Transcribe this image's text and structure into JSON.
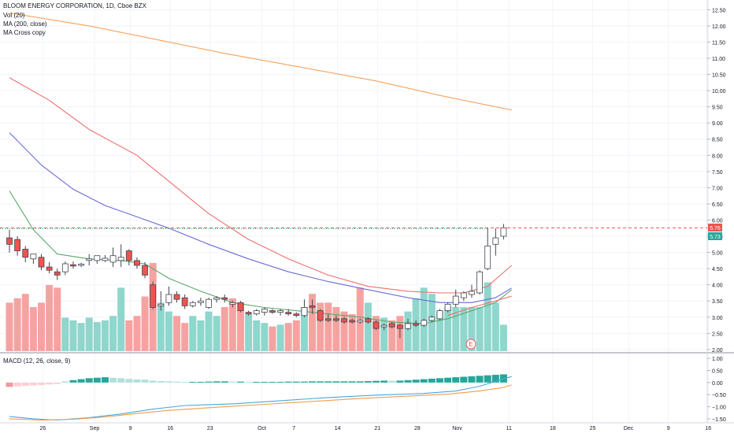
{
  "legend": {
    "title": "BLOOM ENERGY CORPORATION, 1D, Cboe BZX",
    "vol": "Vol (20)",
    "ma": "MA (200, close)",
    "cross": "MA Cross copy",
    "macd": "MACD (12, 26, close, 9)"
  },
  "price_axis": {
    "ticks": [
      "12.50",
      "12.00",
      "11.50",
      "11.00",
      "10.50",
      "10.00",
      "9.50",
      "9.00",
      "8.50",
      "8.00",
      "7.50",
      "7.00",
      "6.50",
      "6.00",
      "5.50",
      "5.00",
      "4.50",
      "4.00",
      "3.50",
      "3.00",
      "2.50",
      "2.00"
    ],
    "last_close_label": "5.76",
    "current_label": "5.73"
  },
  "macd_axis": {
    "ticks": [
      "1.00",
      "0.50",
      "0.00",
      "−0.50",
      "−1.00",
      "−1.50"
    ]
  },
  "time_axis": {
    "ticks": [
      "26",
      "Sep",
      "9",
      "16",
      "23",
      "Oct",
      "7",
      "14",
      "21",
      "28",
      "Nov",
      "11",
      "18",
      "25",
      "Dec",
      "9",
      "16"
    ]
  },
  "earnings_marker": "E",
  "colors": {
    "up": "#26a69a",
    "down": "#ef5350",
    "ma200": "#f7a35c",
    "ma_red": "#f06e6e",
    "ma_blue": "#6b6bd6",
    "ma_green": "#5aa86a",
    "macd_line": "#4aa8d8",
    "signal_line": "#f39c4a"
  },
  "chart_data": {
    "type": "candlestick",
    "price_ylim": [
      1.9,
      12.8
    ],
    "candles": [
      {
        "x": 0,
        "o": 5.45,
        "h": 5.7,
        "c": 5.25,
        "l": 5.0
      },
      {
        "x": 1,
        "o": 5.4,
        "h": 5.5,
        "c": 5.05,
        "l": 4.9
      },
      {
        "x": 2,
        "o": 5.1,
        "h": 5.2,
        "c": 4.85,
        "l": 4.7
      },
      {
        "x": 3,
        "o": 4.8,
        "h": 4.95,
        "c": 4.95,
        "l": 4.65
      },
      {
        "x": 4,
        "o": 4.85,
        "h": 4.95,
        "c": 4.55,
        "l": 4.45
      },
      {
        "x": 5,
        "o": 4.55,
        "h": 4.7,
        "c": 4.45,
        "l": 4.35
      },
      {
        "x": 6,
        "o": 4.4,
        "h": 4.5,
        "c": 4.3,
        "l": 4.15
      },
      {
        "x": 7,
        "o": 4.4,
        "h": 4.72,
        "c": 4.65,
        "l": 4.3
      },
      {
        "x": 8,
        "o": 4.62,
        "h": 4.72,
        "c": 4.58,
        "l": 4.5
      },
      {
        "x": 9,
        "o": 4.6,
        "h": 4.68,
        "c": 4.64,
        "l": 4.55
      },
      {
        "x": 10,
        "o": 4.75,
        "h": 4.95,
        "c": 4.8,
        "l": 4.6
      },
      {
        "x": 11,
        "o": 4.75,
        "h": 4.9,
        "c": 4.9,
        "l": 4.65
      },
      {
        "x": 12,
        "o": 4.75,
        "h": 4.92,
        "c": 4.82,
        "l": 4.7
      },
      {
        "x": 13,
        "o": 4.7,
        "h": 5.15,
        "c": 4.9,
        "l": 4.55
      },
      {
        "x": 14,
        "o": 4.75,
        "h": 5.25,
        "c": 4.85,
        "l": 4.55
      },
      {
        "x": 15,
        "o": 5.05,
        "h": 5.1,
        "c": 4.75,
        "l": 4.6
      },
      {
        "x": 16,
        "o": 4.75,
        "h": 4.85,
        "c": 4.6,
        "l": 4.5
      },
      {
        "x": 17,
        "o": 4.6,
        "h": 4.7,
        "c": 4.3,
        "l": 4.2
      },
      {
        "x": 18,
        "o": 4.0,
        "h": 4.1,
        "c": 3.3,
        "l": 3.25
      },
      {
        "x": 19,
        "o": 3.35,
        "h": 3.8,
        "c": 3.4,
        "l": 3.2
      },
      {
        "x": 20,
        "o": 3.45,
        "h": 3.95,
        "c": 3.7,
        "l": 3.35
      },
      {
        "x": 21,
        "o": 3.7,
        "h": 3.8,
        "c": 3.55,
        "l": 3.45
      },
      {
        "x": 22,
        "o": 3.6,
        "h": 3.7,
        "c": 3.35,
        "l": 3.25
      },
      {
        "x": 23,
        "o": 3.35,
        "h": 3.5,
        "c": 3.45,
        "l": 3.3
      },
      {
        "x": 24,
        "o": 3.45,
        "h": 3.6,
        "c": 3.5,
        "l": 3.35
      },
      {
        "x": 25,
        "o": 3.3,
        "h": 3.6,
        "c": 3.55,
        "l": 3.25
      },
      {
        "x": 26,
        "o": 3.55,
        "h": 3.65,
        "c": 3.6,
        "l": 3.45
      },
      {
        "x": 27,
        "o": 3.6,
        "h": 3.7,
        "c": 3.55,
        "l": 3.45
      },
      {
        "x": 28,
        "o": 3.4,
        "h": 3.5,
        "c": 3.45,
        "l": 3.3
      },
      {
        "x": 29,
        "o": 3.45,
        "h": 3.5,
        "c": 3.2,
        "l": 3.15
      },
      {
        "x": 30,
        "o": 3.15,
        "h": 3.2,
        "c": 3.1,
        "l": 3.05
      },
      {
        "x": 31,
        "o": 3.1,
        "h": 3.25,
        "c": 3.2,
        "l": 3.05
      },
      {
        "x": 32,
        "o": 3.15,
        "h": 3.3,
        "c": 3.25,
        "l": 3.05
      },
      {
        "x": 33,
        "o": 3.2,
        "h": 3.25,
        "c": 3.15,
        "l": 3.1
      },
      {
        "x": 34,
        "o": 3.15,
        "h": 3.25,
        "c": 3.2,
        "l": 3.05
      },
      {
        "x": 35,
        "o": 3.15,
        "h": 3.25,
        "c": 3.1,
        "l": 3.05
      },
      {
        "x": 36,
        "o": 3.1,
        "h": 3.15,
        "c": 3.05,
        "l": 3.0
      },
      {
        "x": 37,
        "o": 3.05,
        "h": 3.55,
        "c": 3.3,
        "l": 3.0
      },
      {
        "x": 38,
        "o": 3.35,
        "h": 3.55,
        "c": 3.3,
        "l": 3.1
      },
      {
        "x": 39,
        "o": 3.2,
        "h": 3.25,
        "c": 2.9,
        "l": 2.85
      },
      {
        "x": 40,
        "o": 2.95,
        "h": 3.1,
        "c": 2.9,
        "l": 2.85
      },
      {
        "x": 41,
        "o": 2.95,
        "h": 3.05,
        "c": 2.9,
        "l": 2.85
      },
      {
        "x": 42,
        "o": 2.95,
        "h": 3.0,
        "c": 2.85,
        "l": 2.8
      },
      {
        "x": 43,
        "o": 2.9,
        "h": 2.95,
        "c": 2.85,
        "l": 2.8
      },
      {
        "x": 44,
        "o": 2.85,
        "h": 2.95,
        "c": 2.9,
        "l": 2.8
      },
      {
        "x": 45,
        "o": 2.95,
        "h": 3.0,
        "c": 2.85,
        "l": 2.8
      },
      {
        "x": 46,
        "o": 2.85,
        "h": 2.9,
        "c": 2.65,
        "l": 2.6
      },
      {
        "x": 47,
        "o": 2.7,
        "h": 2.8,
        "c": 2.75,
        "l": 2.6
      },
      {
        "x": 48,
        "o": 2.8,
        "h": 2.85,
        "c": 2.7,
        "l": 2.65
      },
      {
        "x": 49,
        "o": 2.75,
        "h": 2.8,
        "c": 2.65,
        "l": 2.35
      },
      {
        "x": 50,
        "o": 2.65,
        "h": 2.95,
        "c": 2.8,
        "l": 2.6
      },
      {
        "x": 51,
        "o": 2.8,
        "h": 2.9,
        "c": 2.75,
        "l": 2.7
      },
      {
        "x": 52,
        "o": 2.75,
        "h": 2.95,
        "c": 2.9,
        "l": 2.7
      },
      {
        "x": 53,
        "o": 2.9,
        "h": 3.05,
        "c": 3.0,
        "l": 2.85
      },
      {
        "x": 54,
        "o": 2.95,
        "h": 3.25,
        "c": 3.2,
        "l": 2.9
      },
      {
        "x": 55,
        "o": 3.2,
        "h": 3.45,
        "c": 3.4,
        "l": 3.15
      },
      {
        "x": 56,
        "o": 3.4,
        "h": 3.85,
        "c": 3.65,
        "l": 3.3
      },
      {
        "x": 57,
        "o": 3.6,
        "h": 3.8,
        "c": 3.75,
        "l": 3.5
      },
      {
        "x": 58,
        "o": 3.7,
        "h": 4.0,
        "c": 3.8,
        "l": 3.6
      },
      {
        "x": 59,
        "o": 3.75,
        "h": 4.45,
        "c": 4.4,
        "l": 3.7
      },
      {
        "x": 60,
        "o": 4.5,
        "h": 5.75,
        "c": 5.2,
        "l": 4.45
      },
      {
        "x": 61,
        "o": 5.25,
        "h": 5.75,
        "c": 5.45,
        "l": 4.9
      },
      {
        "x": 62,
        "o": 5.5,
        "h": 5.88,
        "c": 5.76,
        "l": 5.4
      }
    ],
    "volume_relative": [
      0.55,
      0.6,
      0.65,
      0.5,
      0.55,
      0.75,
      0.72,
      0.38,
      0.35,
      0.32,
      0.38,
      0.33,
      0.35,
      0.4,
      0.72,
      0.35,
      0.4,
      0.62,
      1.0,
      0.55,
      0.45,
      0.4,
      0.32,
      0.4,
      0.35,
      0.45,
      0.4,
      0.5,
      0.6,
      0.55,
      0.42,
      0.35,
      0.32,
      0.28,
      0.3,
      0.32,
      0.35,
      0.5,
      0.65,
      0.55,
      0.55,
      0.5,
      0.45,
      0.42,
      0.72,
      0.55,
      0.4,
      0.38,
      0.35,
      0.4,
      0.45,
      0.6,
      0.72,
      0.65,
      0.45,
      0.5,
      0.5,
      0.5,
      0.5,
      0.5,
      0.78,
      0.55,
      0.3
    ],
    "volume_up": [
      false,
      false,
      false,
      false,
      false,
      false,
      false,
      true,
      true,
      true,
      true,
      true,
      true,
      true,
      true,
      false,
      false,
      false,
      false,
      true,
      true,
      false,
      false,
      true,
      true,
      true,
      true,
      false,
      false,
      false,
      true,
      true,
      true,
      false,
      true,
      false,
      false,
      true,
      false,
      false,
      false,
      false,
      false,
      false,
      false,
      true,
      false,
      true,
      false,
      false,
      true,
      true,
      true,
      true,
      true,
      true,
      true,
      true,
      true,
      true,
      true,
      true,
      true
    ],
    "ma200": [
      [
        0,
        12.4
      ],
      [
        10,
        12.0
      ],
      [
        18,
        11.6
      ],
      [
        27,
        11.15
      ],
      [
        36,
        10.75
      ],
      [
        46,
        10.3
      ],
      [
        54,
        9.85
      ],
      [
        60,
        9.55
      ],
      [
        63,
        9.4
      ]
    ],
    "ma_red": [
      [
        0,
        10.4
      ],
      [
        5,
        9.7
      ],
      [
        10,
        8.8
      ],
      [
        16,
        8.0
      ],
      [
        20,
        7.2
      ],
      [
        25,
        6.2
      ],
      [
        30,
        5.4
      ],
      [
        35,
        4.8
      ],
      [
        40,
        4.3
      ],
      [
        45,
        3.95
      ],
      [
        50,
        3.8
      ],
      [
        54,
        3.75
      ],
      [
        57,
        3.75
      ],
      [
        60,
        3.95
      ],
      [
        63,
        4.6
      ]
    ],
    "ma_blue": [
      [
        0,
        8.7
      ],
      [
        4,
        7.7
      ],
      [
        8,
        6.95
      ],
      [
        12,
        6.45
      ],
      [
        16,
        6.1
      ],
      [
        20,
        5.75
      ],
      [
        25,
        5.25
      ],
      [
        30,
        4.8
      ],
      [
        35,
        4.4
      ],
      [
        40,
        4.1
      ],
      [
        45,
        3.85
      ],
      [
        50,
        3.6
      ],
      [
        54,
        3.45
      ],
      [
        58,
        3.45
      ],
      [
        61,
        3.6
      ],
      [
        63,
        3.9
      ]
    ],
    "ma_green": [
      [
        0,
        6.9
      ],
      [
        3,
        5.7
      ],
      [
        6,
        4.95
      ],
      [
        10,
        4.8
      ],
      [
        14,
        4.75
      ],
      [
        17,
        4.65
      ],
      [
        20,
        4.2
      ],
      [
        24,
        3.8
      ],
      [
        28,
        3.45
      ],
      [
        32,
        3.3
      ],
      [
        36,
        3.2
      ],
      [
        40,
        3.1
      ],
      [
        44,
        3.0
      ],
      [
        48,
        2.85
      ],
      [
        52,
        2.8
      ],
      [
        55,
        2.95
      ],
      [
        58,
        3.2
      ],
      [
        61,
        3.45
      ],
      [
        63,
        3.85
      ]
    ],
    "ma_cross_extra": [
      [
        55,
        3.05
      ],
      [
        58,
        3.3
      ],
      [
        61,
        3.5
      ],
      [
        63,
        3.65
      ]
    ],
    "macd_ylim": [
      -1.6,
      1.2
    ],
    "macd_hist": [
      -0.18,
      -0.16,
      -0.14,
      -0.12,
      -0.1,
      -0.08,
      -0.06,
      0.05,
      0.1,
      0.14,
      0.18,
      0.2,
      0.22,
      0.2,
      0.18,
      0.15,
      0.13,
      0.12,
      0.08,
      0.06,
      0.05,
      0.04,
      0.03,
      0.03,
      0.03,
      0.04,
      0.05,
      0.05,
      0.04,
      0.04,
      0.03,
      0.03,
      0.03,
      0.03,
      0.03,
      0.04,
      0.04,
      0.04,
      0.05,
      0.05,
      0.05,
      0.05,
      0.05,
      0.05,
      0.05,
      0.06,
      0.07,
      0.08,
      0.07,
      0.08,
      0.1,
      0.12,
      0.14,
      0.16,
      0.18,
      0.2,
      0.22,
      0.24,
      0.26,
      0.28,
      0.3,
      0.32,
      0.34
    ],
    "macd_line": [
      [
        0,
        -1.4
      ],
      [
        3,
        -1.5
      ],
      [
        6,
        -1.55
      ],
      [
        10,
        -1.45
      ],
      [
        14,
        -1.3
      ],
      [
        18,
        -1.1
      ],
      [
        22,
        -0.95
      ],
      [
        28,
        -0.88
      ],
      [
        34,
        -0.75
      ],
      [
        40,
        -0.62
      ],
      [
        46,
        -0.52
      ],
      [
        52,
        -0.45
      ],
      [
        56,
        -0.35
      ],
      [
        59,
        -0.15
      ],
      [
        61,
        0.05
      ],
      [
        63,
        0.25
      ]
    ],
    "signal_line": [
      [
        0,
        -1.5
      ],
      [
        4,
        -1.55
      ],
      [
        8,
        -1.52
      ],
      [
        12,
        -1.42
      ],
      [
        16,
        -1.28
      ],
      [
        20,
        -1.15
      ],
      [
        26,
        -1.02
      ],
      [
        32,
        -0.9
      ],
      [
        38,
        -0.78
      ],
      [
        44,
        -0.66
      ],
      [
        50,
        -0.56
      ],
      [
        55,
        -0.48
      ],
      [
        59,
        -0.35
      ],
      [
        62,
        -0.2
      ],
      [
        63,
        -0.1
      ]
    ]
  }
}
